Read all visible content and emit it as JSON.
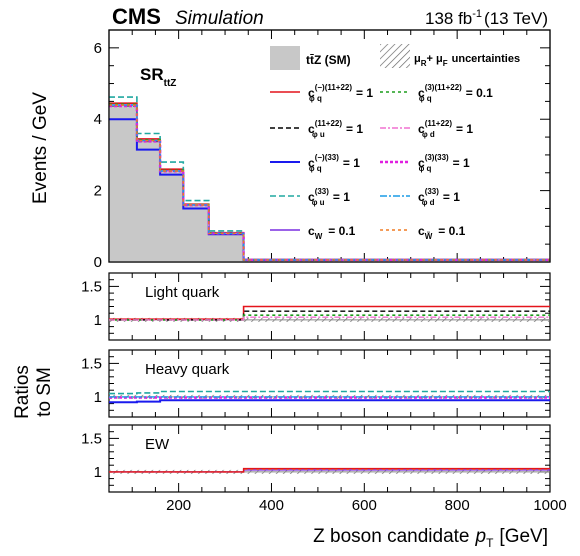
{
  "header": {
    "experiment": "CMS",
    "qualifier": "Simulation",
    "lumi": "138 fb",
    "lumi_sup": "-1",
    "energy": "(13 TeV)"
  },
  "colors": {
    "red": "#e4141b",
    "black": "#000000",
    "blue": "#1a1aee",
    "teal": "#20a8a0",
    "purple": "#7a2ee0",
    "green": "#1e9e1e",
    "pink": "#f070d0",
    "magenta": "#e020e0",
    "skyblue": "#1a9ce6",
    "orange": "#f07a20",
    "sm_fill": "#c8c8c8"
  },
  "chart_data": {
    "type": "histogram",
    "x_edges": [
      50,
      110,
      160,
      210,
      265,
      340,
      1000
    ],
    "xlim": [
      50,
      1000
    ],
    "x_ticks": [
      200,
      400,
      600,
      800,
      1000
    ],
    "xlabel": "Z boson candidate",
    "xlabel_var": "p",
    "xlabel_sub": "T",
    "xlabel_unit": "[GeV]",
    "region_label": "SR",
    "region_sub": "ttZ",
    "main": {
      "ylabel": "Events / GeV",
      "ylim": [
        0,
        6.5
      ],
      "y_ticks": [
        0,
        2,
        4,
        6
      ],
      "sm": [
        4.4,
        3.4,
        2.55,
        1.6,
        0.8,
        0.06
      ],
      "series": [
        {
          "id": "cpq_m_1122",
          "color": "#e4141b",
          "dash": "",
          "width": 1.6,
          "values": [
            4.45,
            3.45,
            2.6,
            1.62,
            0.82,
            0.07
          ]
        },
        {
          "id": "cpu_1122",
          "color": "#000000",
          "dash": "5,3",
          "width": 1.4,
          "values": [
            4.38,
            3.38,
            2.55,
            1.6,
            0.8,
            0.06
          ]
        },
        {
          "id": "cpq_m_33",
          "color": "#1a1aee",
          "dash": "",
          "width": 2.0,
          "values": [
            4.0,
            3.15,
            2.45,
            1.5,
            0.78,
            0.06
          ]
        },
        {
          "id": "cpu_33",
          "color": "#20a8a0",
          "dash": "6,3",
          "width": 1.6,
          "values": [
            4.62,
            3.6,
            2.8,
            1.72,
            0.87,
            0.07
          ]
        },
        {
          "id": "cw",
          "color": "#7a2ee0",
          "dash": "",
          "width": 1.4,
          "values": [
            4.4,
            3.4,
            2.55,
            1.6,
            0.8,
            0.06
          ]
        },
        {
          "id": "cpq_3_1122",
          "color": "#1e9e1e",
          "dash": "3,3",
          "width": 1.6,
          "values": [
            4.42,
            3.42,
            2.57,
            1.61,
            0.81,
            0.06
          ]
        },
        {
          "id": "cpd_1122",
          "color": "#f070d0",
          "dash": "6,2,2,2",
          "width": 1.4,
          "values": [
            4.39,
            3.39,
            2.54,
            1.6,
            0.8,
            0.06
          ]
        },
        {
          "id": "cpq_3_33",
          "color": "#e020e0",
          "dash": "3,2",
          "width": 2.4,
          "values": [
            4.37,
            3.38,
            2.54,
            1.59,
            0.8,
            0.06
          ]
        },
        {
          "id": "cpd_33",
          "color": "#1a9ce6",
          "dash": "7,2,2,2",
          "width": 1.4,
          "values": [
            4.4,
            3.4,
            2.55,
            1.6,
            0.8,
            0.06
          ]
        },
        {
          "id": "ctw",
          "color": "#f07a20",
          "dash": "3,3",
          "width": 1.4,
          "values": [
            4.4,
            3.4,
            2.55,
            1.6,
            0.8,
            0.06
          ]
        }
      ]
    },
    "ratio_ylabel_1": "Ratios",
    "ratio_ylabel_2": "to SM",
    "ratio_panels": [
      {
        "label": "Light quark",
        "ylim": [
          0.7,
          1.7
        ],
        "y_ticks": [
          1,
          1.5
        ],
        "series": [
          {
            "id": "cpq_m_1122",
            "color": "#e4141b",
            "dash": "",
            "width": 1.6,
            "values": [
              1.01,
              1.01,
              1.01,
              1.01,
              1.01,
              1.2
            ]
          },
          {
            "id": "cpu_1122",
            "color": "#000000",
            "dash": "5,3",
            "width": 1.4,
            "values": [
              1.0,
              1.0,
              1.0,
              1.0,
              1.0,
              1.13
            ]
          },
          {
            "id": "cpq_3_1122",
            "color": "#1e9e1e",
            "dash": "3,3",
            "width": 1.6,
            "values": [
              1.0,
              1.0,
              1.0,
              1.0,
              1.0,
              1.07
            ]
          },
          {
            "id": "cpd_1122",
            "color": "#f070d0",
            "dash": "6,2,2,2",
            "width": 1.4,
            "values": [
              1.0,
              1.0,
              1.0,
              1.0,
              1.0,
              1.04
            ]
          }
        ]
      },
      {
        "label": "Heavy quark",
        "ylim": [
          0.7,
          1.7
        ],
        "y_ticks": [
          1,
          1.5
        ],
        "series": [
          {
            "id": "cpu_33",
            "color": "#20a8a0",
            "dash": "6,3",
            "width": 1.6,
            "values": [
              1.05,
              1.06,
              1.08,
              1.08,
              1.08,
              1.08
            ]
          },
          {
            "id": "cpq_3_33",
            "color": "#e020e0",
            "dash": "3,2",
            "width": 2.4,
            "values": [
              0.99,
              0.99,
              0.99,
              0.99,
              0.99,
              0.99
            ]
          },
          {
            "id": "cpd_33",
            "color": "#1a9ce6",
            "dash": "7,2,2,2",
            "width": 1.4,
            "values": [
              1.0,
              1.0,
              1.0,
              1.0,
              1.0,
              1.0
            ]
          },
          {
            "id": "cpq_m_33",
            "color": "#1a1aee",
            "dash": "",
            "width": 2.0,
            "values": [
              0.92,
              0.93,
              0.95,
              0.95,
              0.95,
              0.95
            ]
          }
        ]
      },
      {
        "label": "EW",
        "ylim": [
          0.7,
          1.7
        ],
        "y_ticks": [
          1,
          1.5
        ],
        "series": [
          {
            "id": "cw",
            "color": "#7a2ee0",
            "dash": "",
            "width": 1.4,
            "values": [
              1.0,
              1.0,
              1.0,
              1.0,
              1.0,
              1.03
            ]
          },
          {
            "id": "ctw",
            "color": "#f07a20",
            "dash": "3,3",
            "width": 1.4,
            "values": [
              1.0,
              1.0,
              1.0,
              1.0,
              1.0,
              1.04
            ]
          },
          {
            "id": "cpq_m_1122",
            "color": "#e4141b",
            "dash": "",
            "width": 1.4,
            "values": [
              1.0,
              1.0,
              1.0,
              1.0,
              1.0,
              1.05
            ]
          }
        ]
      }
    ],
    "legend": {
      "placement": "top-right",
      "sm_label": "tt̄Z (SM)",
      "unc_label": "uncertainties",
      "unc_mu": "μ",
      "unc_sub_r": "R",
      "unc_plus": "+ μ",
      "unc_sub_f": "F",
      "entries": [
        {
          "id": "cpq_m_1122",
          "sym": "c",
          "sup": "(−)(11+22)",
          "sub": "φ q",
          "value": "= 1"
        },
        {
          "id": "cpq_3_1122",
          "sym": "c",
          "sup": "(3)(11+22)",
          "sub": "φ q",
          "value": "= 0.1"
        },
        {
          "id": "cpu_1122",
          "sym": "c",
          "sup": "(11+22)",
          "sub": "φ u",
          "value": "= 1"
        },
        {
          "id": "cpd_1122",
          "sym": "c",
          "sup": "(11+22)",
          "sub": "φ d",
          "value": "= 1"
        },
        {
          "id": "cpq_m_33",
          "sym": "c",
          "sup": "(−)(33)",
          "sub": "φ q",
          "value": "= 1"
        },
        {
          "id": "cpq_3_33",
          "sym": "c",
          "sup": "(3)(33)",
          "sub": "φ q",
          "value": "= 1"
        },
        {
          "id": "cpu_33",
          "sym": "c",
          "sup": "(33)",
          "sub": "φ u",
          "value": "= 1"
        },
        {
          "id": "cpd_33",
          "sym": "c",
          "sup": "(33)",
          "sub": "φ d",
          "value": "= 1"
        },
        {
          "id": "cw",
          "sym": "c",
          "sup": "",
          "sub": "W",
          "value": "= 0.1"
        },
        {
          "id": "ctw",
          "sym": "c",
          "sup": "",
          "sub": "W̃",
          "value": "= 0.1"
        }
      ]
    }
  }
}
